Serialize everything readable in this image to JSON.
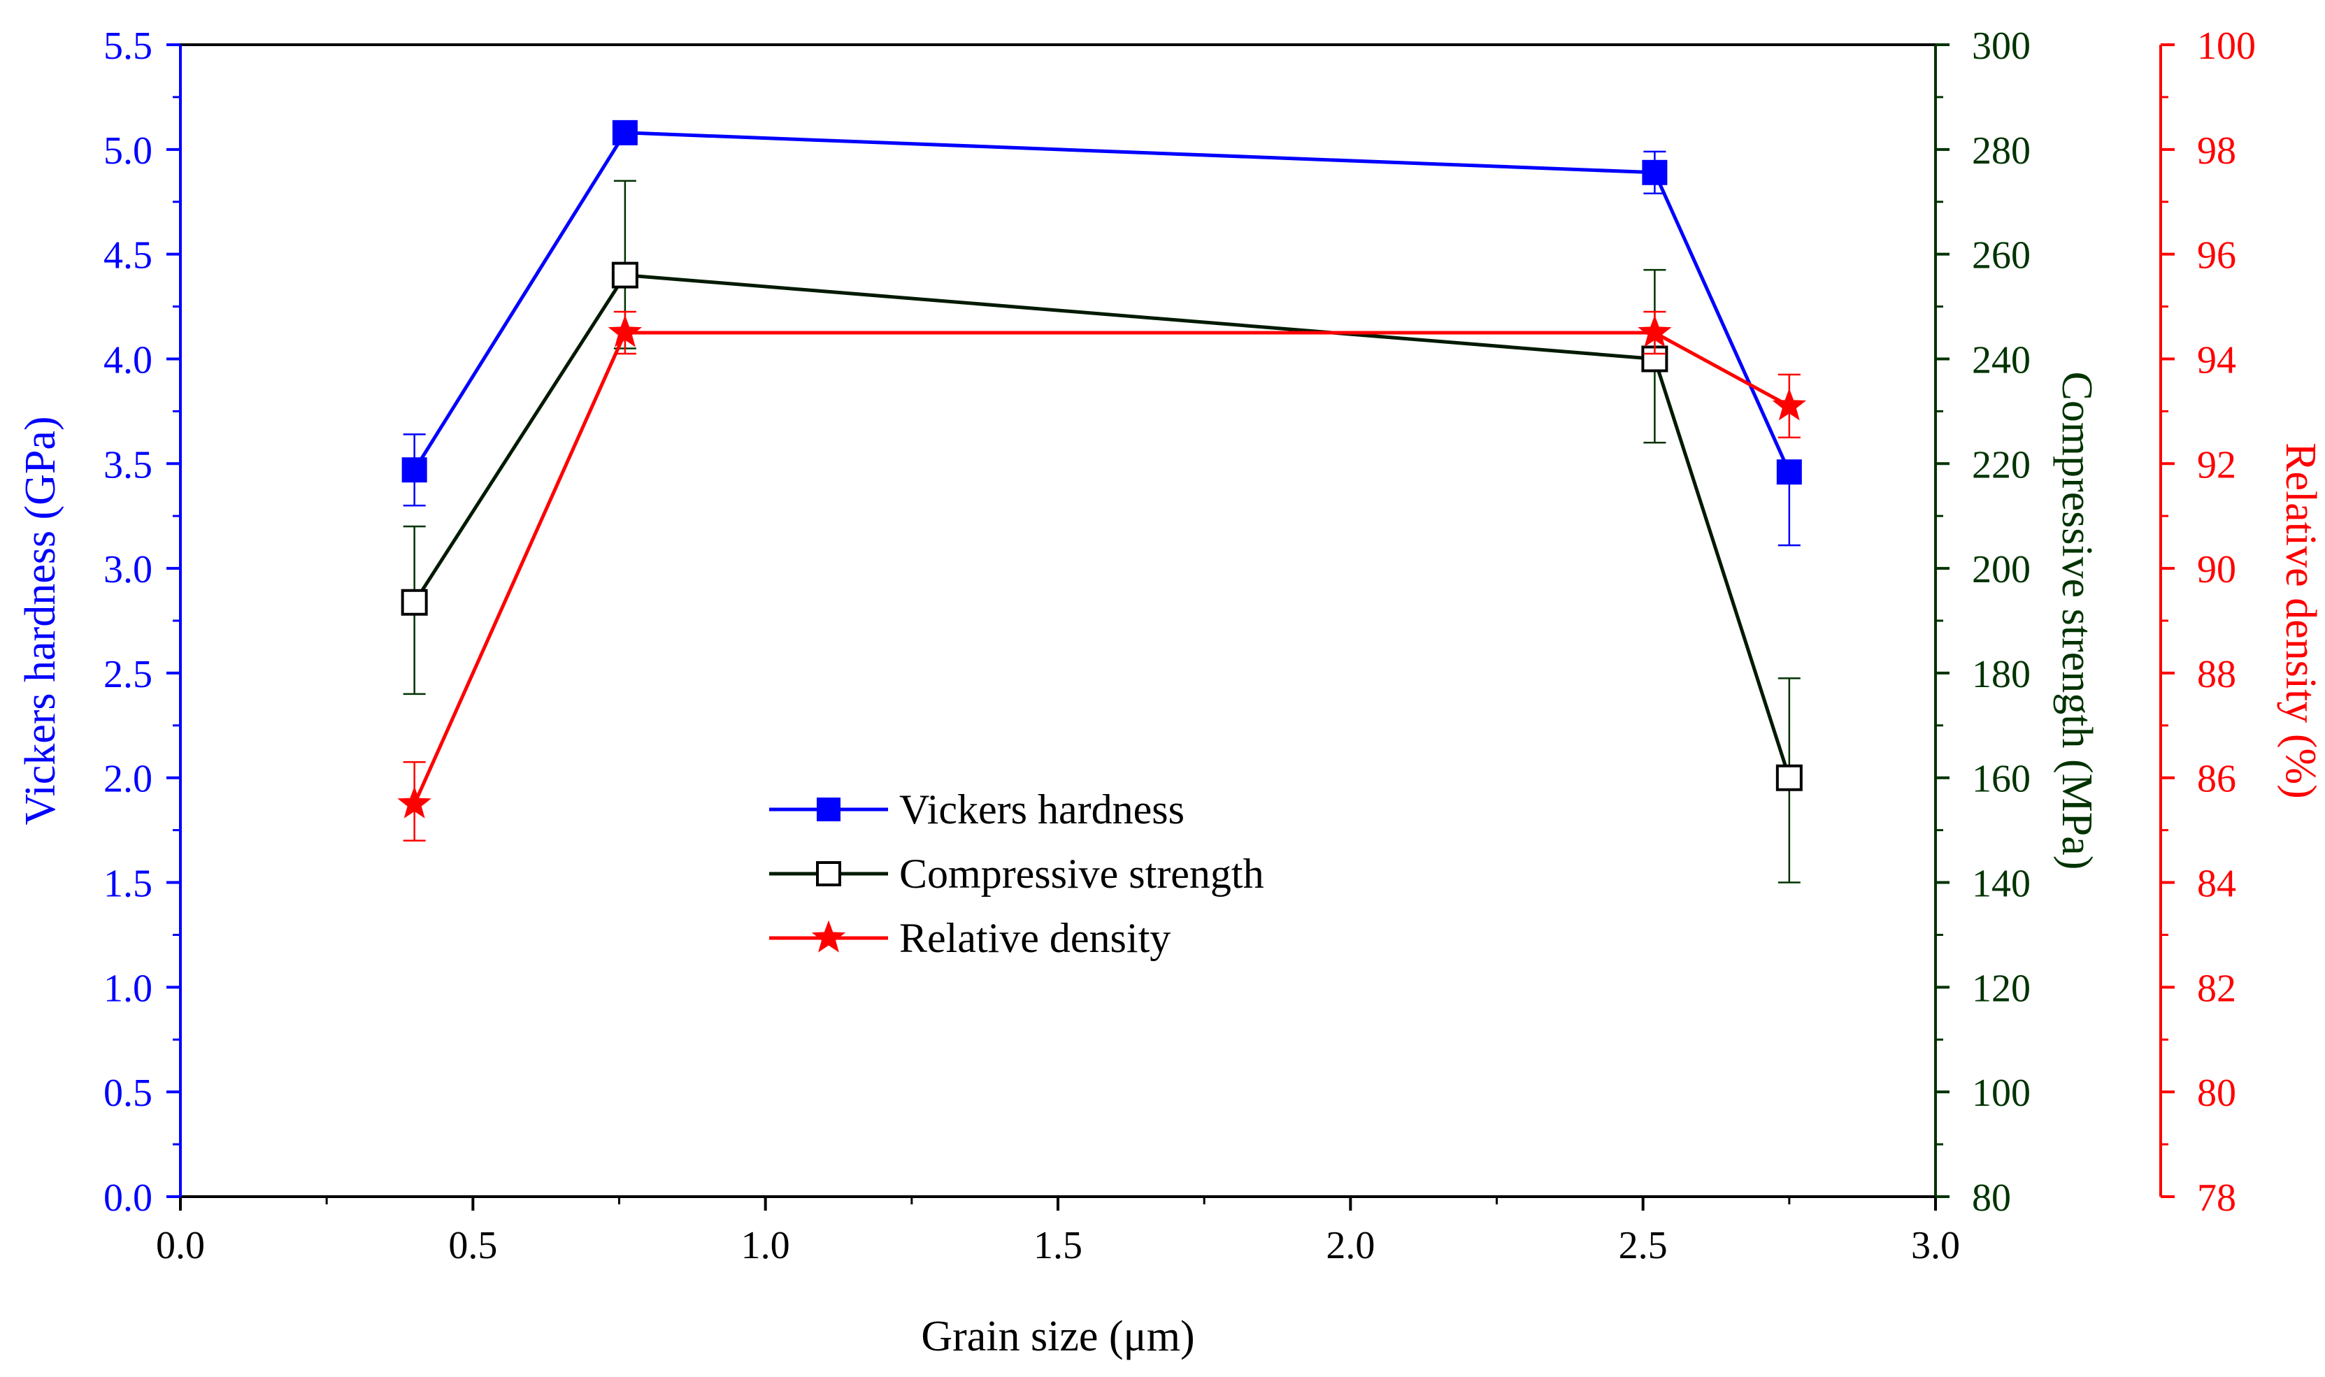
{
  "chart_data": {
    "type": "line",
    "xlabel": "Grain size (μm)",
    "x_axis": {
      "range": [
        0.0,
        3.0
      ],
      "ticks": [
        "0.0",
        "0.5",
        "1.0",
        "1.5",
        "2.0",
        "2.5",
        "3.0"
      ],
      "color": "#000000"
    },
    "y_axes": [
      {
        "id": "hv",
        "label": "Vickers hardness (GPa)",
        "side": "left",
        "range": [
          0.0,
          5.5
        ],
        "ticks": [
          "0.0",
          "0.5",
          "1.0",
          "1.5",
          "2.0",
          "2.5",
          "3.0",
          "3.5",
          "4.0",
          "4.5",
          "5.0",
          "5.5"
        ],
        "color": "#0000ff"
      },
      {
        "id": "cs",
        "label": "Compressive strength (MPa)",
        "side": "right",
        "range": [
          80,
          300
        ],
        "ticks": [
          "80",
          "100",
          "120",
          "140",
          "160",
          "180",
          "200",
          "220",
          "240",
          "260",
          "280",
          "300"
        ],
        "color": "#003300"
      },
      {
        "id": "rd",
        "label": "Relative density (%)",
        "side": "right-offset",
        "range": [
          78,
          100
        ],
        "ticks": [
          "78",
          "80",
          "82",
          "84",
          "86",
          "88",
          "90",
          "92",
          "94",
          "96",
          "98",
          "100"
        ],
        "color": "#ff0000"
      }
    ],
    "series": [
      {
        "name": "Vickers hardness",
        "axis": "hv",
        "color": "#0000ff",
        "marker": "filled-square",
        "x": [
          0.4,
          0.76,
          2.52,
          2.75
        ],
        "y": [
          3.47,
          5.08,
          4.89,
          3.46
        ],
        "error": [
          [
            3.3,
            3.64
          ],
          [
            5.08,
            5.08
          ],
          [
            4.79,
            4.99
          ],
          [
            3.11,
            3.46
          ]
        ]
      },
      {
        "name": "Compressive strength",
        "axis": "cs",
        "color": "#003300",
        "marker": "open-square",
        "x": [
          0.4,
          0.76,
          2.52,
          2.75
        ],
        "y": [
          193.5,
          256,
          240,
          160
        ],
        "error": [
          [
            176,
            208
          ],
          [
            242,
            274
          ],
          [
            224,
            257
          ],
          [
            140,
            179
          ]
        ]
      },
      {
        "name": "Relative density",
        "axis": "rd",
        "color": "#ff0000",
        "marker": "star",
        "x": [
          0.4,
          0.76,
          2.52,
          2.75
        ],
        "y": [
          85.5,
          94.5,
          94.5,
          93.1
        ],
        "error": [
          [
            84.8,
            86.3
          ],
          [
            94.1,
            94.9
          ],
          [
            94.1,
            94.9
          ],
          [
            92.5,
            93.7
          ]
        ]
      }
    ],
    "legend": {
      "position": "center",
      "entries": [
        "Vickers hardness",
        "Compressive strength",
        "Relative density"
      ]
    },
    "grid": false
  }
}
